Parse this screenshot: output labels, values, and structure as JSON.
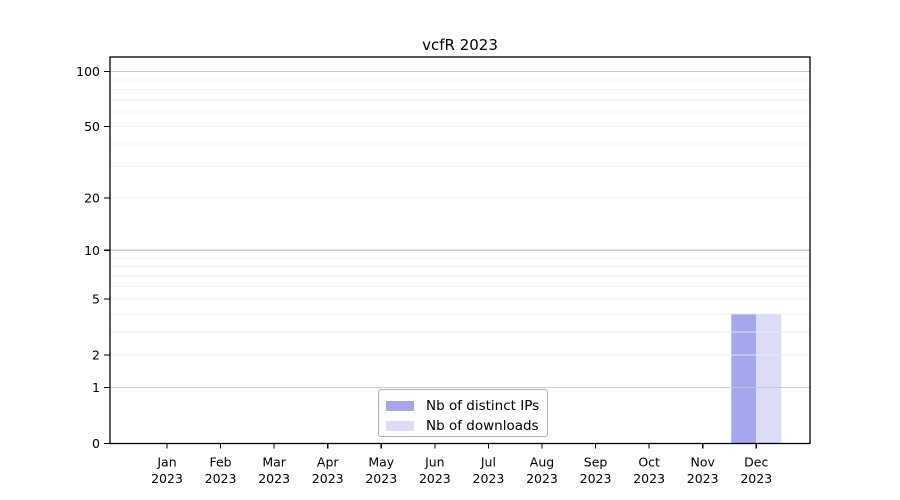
{
  "figure": {
    "background": "#ffffff"
  },
  "chart_data": {
    "type": "bar",
    "title": "vcfR 2023",
    "categories": [
      "Jan 2023",
      "Feb 2023",
      "Mar 2023",
      "Apr 2023",
      "May 2023",
      "Jun 2023",
      "Jul 2023",
      "Aug 2023",
      "Sep 2023",
      "Oct 2023",
      "Nov 2023",
      "Dec 2023"
    ],
    "series": [
      {
        "name": "Nb of distinct IPs",
        "color": "#a6a6ee",
        "values": [
          0,
          0,
          0,
          0,
          0,
          0,
          0,
          0,
          0,
          0,
          0,
          4
        ]
      },
      {
        "name": "Nb of downloads",
        "color": "#dcdcf8",
        "values": [
          0,
          0,
          0,
          0,
          0,
          0,
          0,
          0,
          0,
          0,
          0,
          4
        ]
      }
    ],
    "xlabel": "",
    "ylabel": "",
    "yscale": "log1p",
    "ylim": [
      0,
      120
    ],
    "yticks": [
      0,
      1,
      2,
      5,
      10,
      20,
      50,
      100
    ],
    "major_gridlines": [
      1,
      10,
      100
    ],
    "minor_gridlines": [
      2,
      3,
      4,
      5,
      6,
      7,
      8,
      9,
      20,
      30,
      40,
      50,
      60,
      70,
      80,
      90
    ],
    "grid_color_major": "#c8c8c8",
    "grid_color_minor": "#ededed",
    "axis_color": "#000000",
    "tick_label_color": "#000000",
    "legend": {
      "position": "lower center"
    }
  }
}
